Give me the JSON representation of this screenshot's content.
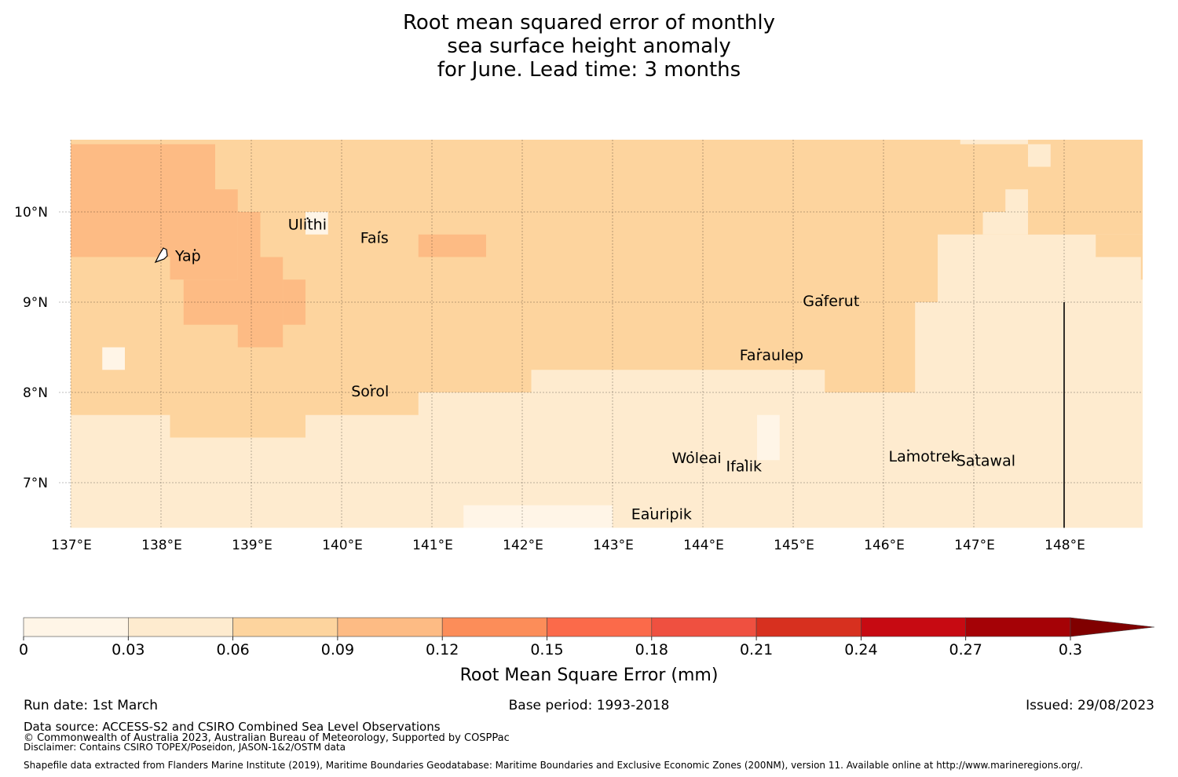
{
  "title": {
    "line1": "Root mean squared error of monthly",
    "line2": "sea surface height anomaly",
    "line3": "for June. Lead time: 3 months"
  },
  "map": {
    "lon_range": [
      137.0,
      149.0
    ],
    "lat_range": [
      6.5,
      10.8
    ],
    "lon_ticks": [
      {
        "value": 137,
        "label": "137°E"
      },
      {
        "value": 138,
        "label": "138°E"
      },
      {
        "value": 139,
        "label": "139°E"
      },
      {
        "value": 140,
        "label": "140°E"
      },
      {
        "value": 141,
        "label": "141°E"
      },
      {
        "value": 142,
        "label": "142°E"
      },
      {
        "value": 143,
        "label": "143°E"
      },
      {
        "value": 144,
        "label": "144°E"
      },
      {
        "value": 145,
        "label": "145°E"
      },
      {
        "value": 146,
        "label": "146°E"
      },
      {
        "value": 147,
        "label": "147°E"
      },
      {
        "value": 148,
        "label": "148°E"
      }
    ],
    "lat_ticks": [
      {
        "value": 10,
        "label": "10°N"
      },
      {
        "value": 9,
        "label": "9°N"
      },
      {
        "value": 8,
        "label": "8°N"
      },
      {
        "value": 7,
        "label": "7°N"
      }
    ],
    "islands": [
      {
        "name": "Yap",
        "lon": 138.4,
        "lat": 9.5
      },
      {
        "name": "Ulithi",
        "lon": 139.65,
        "lat": 9.85
      },
      {
        "name": "Fais",
        "lon": 140.45,
        "lat": 9.7
      },
      {
        "name": "Gaferut",
        "lon": 145.35,
        "lat": 9.0
      },
      {
        "name": "Faraulep",
        "lon": 144.65,
        "lat": 8.4
      },
      {
        "name": "Sorol",
        "lon": 140.35,
        "lat": 8.0
      },
      {
        "name": "Woleai",
        "lon": 143.9,
        "lat": 7.26
      },
      {
        "name": "Ifalik",
        "lon": 144.5,
        "lat": 7.17
      },
      {
        "name": "Lamotrek",
        "lon": 146.3,
        "lat": 7.28
      },
      {
        "name": "Satawal",
        "lon": 147.05,
        "lat": 7.23
      },
      {
        "name": "Eauripik",
        "lon": 143.45,
        "lat": 6.64
      }
    ],
    "boundary_line": {
      "lon": 148.0,
      "lat_from": 6.5,
      "lat_to": 9.0
    },
    "levels": [
      {
        "value": 0.035,
        "lon0": 137.0,
        "lon1": 149.0,
        "lat0": 6.5,
        "lat1": 10.8
      },
      {
        "value": 0.075,
        "lon0": 137.0,
        "lon1": 138.1,
        "lat0": 7.75,
        "lat1": 10.8
      },
      {
        "value": 0.075,
        "lon0": 137.0,
        "lon1": 149.0,
        "lat0": 8.0,
        "lat1": 10.8
      },
      {
        "value": 0.075,
        "lon0": 138.1,
        "lon1": 139.6,
        "lat0": 7.5,
        "lat1": 8.0
      },
      {
        "value": 0.075,
        "lon0": 139.6,
        "lon1": 140.85,
        "lat0": 7.75,
        "lat1": 8.0
      },
      {
        "value": 0.075,
        "lon0": 145.35,
        "lon1": 146.35,
        "lat0": 8.0,
        "lat1": 8.25
      },
      {
        "value": 0.105,
        "lon0": 137.0,
        "lon1": 138.1,
        "lat0": 9.5,
        "lat1": 10.75
      },
      {
        "value": 0.105,
        "lon0": 138.1,
        "lon1": 138.6,
        "lat0": 9.25,
        "lat1": 10.75
      },
      {
        "value": 0.105,
        "lon0": 138.6,
        "lon1": 138.85,
        "lat0": 9.25,
        "lat1": 10.25
      },
      {
        "value": 0.105,
        "lon0": 138.85,
        "lon1": 139.1,
        "lat0": 8.5,
        "lat1": 10.0
      },
      {
        "value": 0.105,
        "lon0": 138.25,
        "lon1": 139.35,
        "lat0": 8.75,
        "lat1": 9.25
      },
      {
        "value": 0.105,
        "lon0": 139.1,
        "lon1": 139.35,
        "lat0": 8.5,
        "lat1": 9.5
      },
      {
        "value": 0.105,
        "lon0": 139.35,
        "lon1": 139.6,
        "lat0": 8.75,
        "lat1": 9.25
      },
      {
        "value": 0.105,
        "lon0": 140.85,
        "lon1": 141.6,
        "lat0": 9.5,
        "lat1": 9.75
      },
      {
        "value": 0.035,
        "lon0": 142.1,
        "lon1": 145.35,
        "lat0": 8.0,
        "lat1": 8.25
      },
      {
        "value": 0.035,
        "lon0": 146.35,
        "lon1": 149.0,
        "lat0": 8.0,
        "lat1": 9.0
      },
      {
        "value": 0.035,
        "lon0": 146.6,
        "lon1": 149.0,
        "lat0": 9.0,
        "lat1": 9.75
      },
      {
        "value": 0.035,
        "lon0": 147.1,
        "lon1": 147.6,
        "lat0": 9.75,
        "lat1": 10.0
      },
      {
        "value": 0.035,
        "lon0": 147.35,
        "lon1": 147.6,
        "lat0": 10.0,
        "lat1": 10.25
      },
      {
        "value": 0.035,
        "lon0": 147.6,
        "lon1": 147.85,
        "lat0": 10.5,
        "lat1": 10.75
      },
      {
        "value": 0.035,
        "lon0": 146.85,
        "lon1": 147.6,
        "lat0": 10.75,
        "lat1": 10.8
      },
      {
        "value": 0.075,
        "lon0": 147.6,
        "lon1": 148.35,
        "lat0": 9.75,
        "lat1": 10.0
      },
      {
        "value": 0.075,
        "lon0": 148.35,
        "lon1": 149.0,
        "lat0": 9.5,
        "lat1": 9.75
      },
      {
        "value": 0.075,
        "lon0": 148.85,
        "lon1": 149.0,
        "lat0": 9.25,
        "lat1": 9.5
      },
      {
        "value": 0.015,
        "lon0": 137.35,
        "lon1": 137.6,
        "lat0": 8.25,
        "lat1": 8.5
      },
      {
        "value": 0.015,
        "lon0": 139.6,
        "lon1": 139.85,
        "lat0": 9.75,
        "lat1": 10.0
      },
      {
        "value": 0.015,
        "lon0": 141.35,
        "lon1": 143.0,
        "lat0": 6.5,
        "lat1": 6.75
      },
      {
        "value": 0.015,
        "lon0": 144.6,
        "lon1": 144.85,
        "lat0": 7.25,
        "lat1": 7.75
      }
    ]
  },
  "colorbar": {
    "label": "Root Mean Square Error (mm)",
    "ticks": [
      "0",
      "0.03",
      "0.06",
      "0.09",
      "0.12",
      "0.15",
      "0.18",
      "0.21",
      "0.24",
      "0.27",
      "0.3"
    ],
    "tick_values": [
      0,
      0.03,
      0.06,
      0.09,
      0.12,
      0.15,
      0.18,
      0.21,
      0.24,
      0.27,
      0.3
    ],
    "colors": [
      "#fff5e7",
      "#feebcf",
      "#fdd49e",
      "#fdbb84",
      "#fc8d59",
      "#fb6a4a",
      "#ef5040",
      "#d7301f",
      "#c70a12",
      "#a50206"
    ],
    "extend_color": "#800000"
  },
  "footer": {
    "run_date": "Run date: 1st March",
    "base_period": "Base period: 1993-2018",
    "issued": "Issued: 29/08/2023",
    "data_source": "Data source: ACCESS-S2 and CSIRO Combined Sea Level Observations",
    "copyright": "© Commonwealth of Australia 2023, Australian Bureau of Meteorology, Supported by COSPPac",
    "disclaimer": "Disclaimer: Contains CSIRO TOPEX/Poseidon, JASON-1&2/OSTM data",
    "shapefile": "Shapefile data extracted from Flanders Marine Institute (2019), Maritime Boundaries Geodatabase: Maritime Boundaries and Exclusive Economic Zones (200NM), version 11. Available online at http://www.marineregions.org/."
  }
}
